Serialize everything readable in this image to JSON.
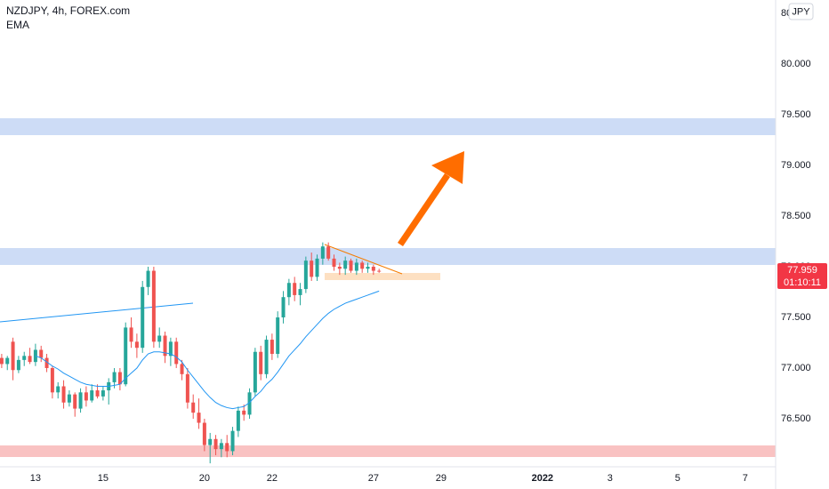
{
  "chart_data": {
    "type": "candlestick",
    "title": "NZDJPY, 4h, FOREX.com",
    "currency": "JPY",
    "up_color": "#26a69a",
    "down_color": "#ef5350",
    "x": [
      0,
      1,
      2,
      3,
      4,
      5,
      6,
      7,
      8,
      9,
      10,
      11,
      12,
      13,
      14,
      15,
      16,
      17,
      18,
      19,
      20,
      21,
      22,
      23,
      24,
      25,
      26,
      27,
      28,
      29,
      30,
      31,
      32,
      33,
      34,
      35,
      36,
      37,
      38,
      39,
      40,
      41,
      42,
      43,
      44,
      45,
      46,
      47,
      48,
      49,
      50,
      51,
      52,
      53,
      54,
      55,
      56,
      57,
      58,
      59,
      60,
      61,
      62,
      63,
      64,
      65,
      66,
      67
    ],
    "open": [
      77.1,
      77.04,
      77.26,
      76.98,
      77.08,
      77.12,
      77.06,
      77.18,
      77.1,
      77.0,
      76.76,
      76.82,
      76.66,
      76.74,
      76.6,
      76.76,
      76.68,
      76.78,
      76.72,
      76.78,
      76.86,
      76.96,
      76.84,
      77.4,
      77.26,
      77.2,
      77.8,
      77.96,
      77.26,
      77.32,
      77.12,
      77.26,
      77.04,
      76.94,
      76.66,
      76.56,
      76.46,
      76.24,
      76.3,
      76.2,
      76.26,
      76.18,
      76.38,
      76.58,
      76.54,
      76.76,
      77.16,
      76.94,
      77.28,
      77.14,
      77.5,
      77.7,
      77.84,
      77.72,
      77.78,
      78.06,
      77.9,
      78.08,
      78.2,
      78.08,
      78.0,
      77.98,
      78.06,
      77.96,
      78.04,
      77.98,
      78.0,
      77.96
    ],
    "high": [
      77.14,
      77.12,
      77.3,
      77.12,
      77.16,
      77.2,
      77.24,
      77.22,
      77.14,
      77.02,
      76.86,
      76.88,
      76.78,
      76.76,
      76.8,
      76.82,
      76.84,
      76.84,
      76.82,
      76.9,
      77.0,
      77.0,
      77.45,
      77.5,
      77.34,
      77.86,
      78.0,
      78.0,
      77.4,
      77.36,
      77.3,
      77.3,
      77.08,
      77.0,
      76.74,
      76.7,
      76.5,
      76.36,
      76.34,
      76.3,
      76.34,
      76.42,
      76.62,
      76.64,
      76.8,
      77.2,
      77.22,
      77.32,
      77.34,
      77.56,
      77.76,
      77.88,
      77.9,
      77.84,
      78.1,
      78.14,
      78.12,
      78.24,
      78.24,
      78.12,
      78.04,
      78.1,
      78.08,
      78.08,
      78.06,
      78.04,
      78.02,
      77.98
    ],
    "low": [
      77.0,
      76.98,
      76.88,
      76.95,
      77.02,
      77.04,
      77.02,
      77.06,
      76.96,
      76.7,
      76.7,
      76.6,
      76.62,
      76.52,
      76.56,
      76.62,
      76.66,
      76.7,
      76.68,
      76.64,
      76.8,
      76.78,
      76.82,
      77.2,
      77.1,
      77.15,
      77.72,
      77.2,
      77.2,
      77.05,
      77.02,
      77.0,
      76.88,
      76.6,
      76.5,
      76.4,
      76.18,
      76.06,
      76.14,
      76.12,
      76.12,
      76.14,
      76.32,
      76.48,
      76.5,
      76.72,
      76.88,
      76.9,
      77.08,
      77.1,
      77.44,
      77.62,
      77.66,
      77.62,
      77.74,
      77.86,
      77.86,
      78.02,
      78.06,
      77.96,
      77.92,
      77.92,
      77.94,
      77.92,
      77.94,
      77.94,
      77.92,
      77.94
    ],
    "close": [
      77.04,
      77.1,
      76.98,
      77.08,
      77.12,
      77.06,
      77.18,
      77.1,
      77.0,
      76.76,
      76.82,
      76.66,
      76.74,
      76.6,
      76.76,
      76.68,
      76.78,
      76.72,
      76.78,
      76.86,
      76.96,
      76.84,
      77.4,
      77.26,
      77.2,
      77.8,
      77.96,
      77.26,
      77.32,
      77.12,
      77.26,
      77.04,
      76.94,
      76.66,
      76.56,
      76.46,
      76.24,
      76.3,
      76.2,
      76.26,
      76.18,
      76.38,
      76.58,
      76.54,
      76.76,
      77.16,
      76.94,
      77.28,
      77.14,
      77.5,
      77.7,
      77.84,
      77.72,
      77.78,
      78.06,
      77.9,
      78.08,
      78.2,
      78.08,
      78.0,
      77.98,
      78.06,
      77.96,
      78.04,
      77.98,
      78.0,
      77.96,
      77.959
    ],
    "series": [
      {
        "name": "EMA",
        "color": "#2196f3",
        "values": [
          null,
          null,
          null,
          null,
          null,
          null,
          77.12,
          77.1,
          77.06,
          77.02,
          76.99,
          76.95,
          76.92,
          76.89,
          76.86,
          76.84,
          76.83,
          76.82,
          76.82,
          76.82,
          76.83,
          76.84,
          76.9,
          76.95,
          77.0,
          77.08,
          77.14,
          77.16,
          77.16,
          77.15,
          77.14,
          77.11,
          77.06,
          76.98,
          76.91,
          76.84,
          76.77,
          76.71,
          76.66,
          76.63,
          76.61,
          76.6,
          76.61,
          76.62,
          76.66,
          76.72,
          76.77,
          76.84,
          76.89,
          76.96,
          77.04,
          77.12,
          77.18,
          77.24,
          77.31,
          77.37,
          77.43,
          77.49,
          77.54,
          77.58,
          77.61,
          77.64,
          77.66,
          77.68,
          77.7,
          77.72,
          77.74,
          77.76
        ]
      }
    ],
    "last_price": 77.959,
    "countdown": "01:10:11",
    "xlim": [
      -0.3,
      137.4
    ],
    "xticks": [
      {
        "value": 6,
        "label": "13"
      },
      {
        "value": 18,
        "label": "15"
      },
      {
        "value": 36,
        "label": "20"
      },
      {
        "value": 48,
        "label": "22"
      },
      {
        "value": 66,
        "label": "27"
      },
      {
        "value": 78,
        "label": "29"
      },
      {
        "value": 96,
        "label": "2022"
      },
      {
        "value": 108,
        "label": "3"
      },
      {
        "value": 120,
        "label": "5"
      },
      {
        "value": 132,
        "label": "7"
      }
    ],
    "ylim": [
      76.026,
      80.632
    ],
    "yticks": [
      {
        "value": 76.5,
        "label": "76.500"
      },
      {
        "value": 77,
        "label": "77.000"
      },
      {
        "value": 77.5,
        "label": "77.500"
      },
      {
        "value": 78,
        "label": "78.000"
      },
      {
        "value": 78.5,
        "label": "78.500"
      },
      {
        "value": 79,
        "label": "79.000"
      },
      {
        "value": 79.5,
        "label": "79.500"
      },
      {
        "value": 80,
        "label": "80.000"
      },
      {
        "value": 80.5,
        "label": "80.500"
      }
    ],
    "grid": false
  }
}
